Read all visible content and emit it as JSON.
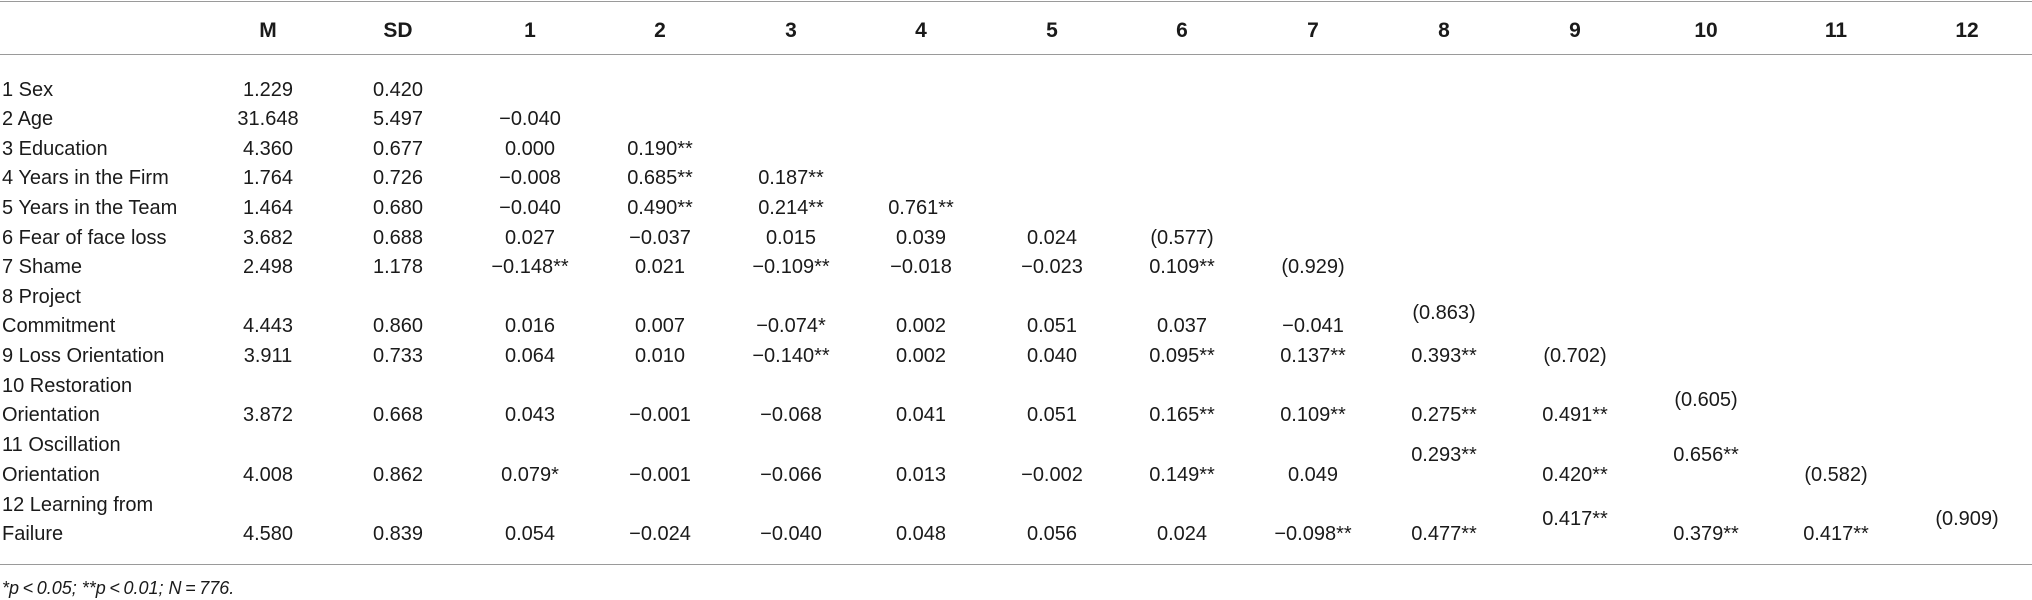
{
  "table": {
    "headers": [
      "M",
      "SD",
      "1",
      "2",
      "3",
      "4",
      "5",
      "6",
      "7",
      "8",
      "9",
      "10",
      "11",
      "12"
    ],
    "rows": [
      {
        "label": [
          "1 Sex"
        ],
        "values": [
          "1.229",
          "0.420"
        ]
      },
      {
        "label": [
          "2 Age"
        ],
        "values": [
          "31.648",
          "5.497",
          "−0.040"
        ]
      },
      {
        "label": [
          "3 Education"
        ],
        "values": [
          "4.360",
          "0.677",
          "0.000",
          "0.190**"
        ]
      },
      {
        "label": [
          "4 Years in the Firm"
        ],
        "values": [
          "1.764",
          "0.726",
          "−0.008",
          "0.685**",
          "0.187**"
        ]
      },
      {
        "label": [
          "5 Years in the Team"
        ],
        "values": [
          "1.464",
          "0.680",
          "−0.040",
          "0.490**",
          "0.214**",
          "0.761**"
        ]
      },
      {
        "label": [
          "6 Fear of face loss"
        ],
        "values": [
          "3.682",
          "0.688",
          "0.027",
          "−0.037",
          "0.015",
          "0.039",
          "0.024",
          "(0.577)"
        ]
      },
      {
        "label": [
          "7 Shame"
        ],
        "values": [
          "2.498",
          "1.178",
          "−0.148**",
          "0.021",
          "−0.109**",
          "−0.018",
          "−0.023",
          "0.109**",
          "(0.929)"
        ]
      },
      {
        "label": [
          "8 Project",
          "Commitment"
        ],
        "values": [
          "4.443",
          "0.860",
          "0.016",
          "0.007",
          "−0.074*",
          "0.002",
          "0.051",
          "0.037",
          "−0.041",
          "(0.863)"
        ]
      },
      {
        "label": [
          "9 Loss Orientation"
        ],
        "values": [
          "3.911",
          "0.733",
          "0.064",
          "0.010",
          "−0.140**",
          "0.002",
          "0.040",
          "0.095**",
          "0.137**",
          "0.393**",
          "(0.702)"
        ]
      },
      {
        "label": [
          "10 Restoration",
          "Orientation"
        ],
        "values": [
          "3.872",
          "0.668",
          "0.043",
          "−0.001",
          "−0.068",
          "0.041",
          "0.051",
          "0.165**",
          "0.109**",
          "0.275**",
          "0.491**",
          "(0.605)"
        ]
      },
      {
        "label": [
          "11 Oscillation",
          "Orientation"
        ],
        "values": [
          "4.008",
          "0.862",
          "0.079*",
          "−0.001",
          "−0.066",
          "0.013",
          "−0.002",
          "0.149**",
          "0.049",
          "0.293**",
          "0.420**",
          "0.656**",
          "(0.582)"
        ]
      },
      {
        "label": [
          "12 Learning from",
          "Failure"
        ],
        "values": [
          "4.580",
          "0.839",
          "0.054",
          "−0.024",
          "−0.040",
          "0.048",
          "0.056",
          "0.024",
          "−0.098**",
          "0.477**",
          "0.417**",
          "0.379**",
          "0.417**",
          "(0.909)"
        ]
      }
    ],
    "footnote": "*p < 0.05; **p < 0.01; N = 776."
  }
}
